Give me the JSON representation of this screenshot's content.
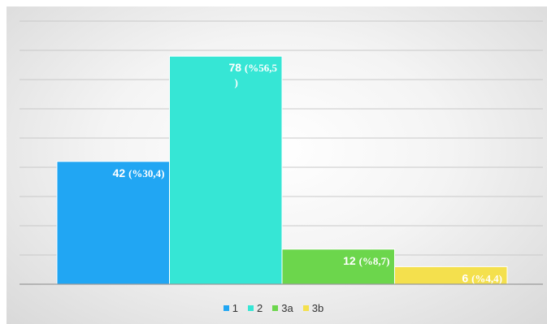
{
  "chart_data": {
    "type": "bar",
    "categories": [
      "1",
      "2",
      "3a",
      "3b"
    ],
    "values": [
      42,
      78,
      12,
      6
    ],
    "data_labels": [
      [
        "42",
        "(%30,4)"
      ],
      [
        "78",
        "(%56,5",
        ")"
      ],
      [
        "12",
        "(%8,7)"
      ],
      [
        "6",
        "(%4,4)"
      ]
    ],
    "colors": [
      "#21a6f3",
      "#36e6d5",
      "#6cd64c",
      "#f4e04d"
    ],
    "ylim": [
      0,
      90
    ],
    "grid": true,
    "legend_position": "bottom",
    "legend": [
      "1",
      "2",
      "3a",
      "3b"
    ]
  }
}
